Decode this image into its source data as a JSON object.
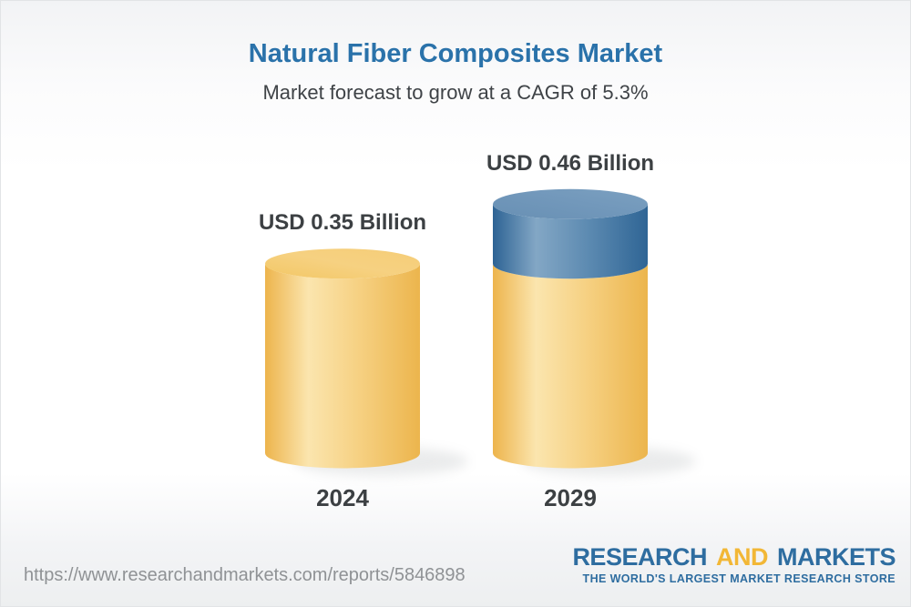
{
  "header": {
    "title": "Natural Fiber Composites Market",
    "subtitle": "Market forecast to grow at a CAGR of 5.3%"
  },
  "chart_data": {
    "type": "bar",
    "variant": "3d-cylinder-stacked",
    "title": "Natural Fiber Composites Market",
    "subtitle": "Market forecast to grow at a CAGR of 5.3%",
    "unit": "USD Billion",
    "categories": [
      "2024",
      "2029"
    ],
    "series": [
      {
        "name": "base-market-size",
        "color_key": "yellow",
        "values": [
          0.35,
          0.35
        ]
      },
      {
        "name": "forecast-growth",
        "color_key": "blue",
        "values": [
          0,
          0.11
        ]
      }
    ],
    "totals": [
      0.35,
      0.46
    ],
    "bar_labels": [
      "USD 0.35 Billion",
      "USD 0.46 Billion"
    ],
    "ylim": [
      0,
      0.5
    ],
    "colors": {
      "yellow": "#F2C462",
      "yellow_highlight": "#FBE5AE",
      "yellow_edge": "#ECB54D",
      "yellow_top": "#F5CE79",
      "blue": "#3D6F9E",
      "blue_highlight": "#83A7C5",
      "blue_edge": "#2D6394",
      "blue_top": "#6E94B8"
    }
  },
  "footer": {
    "url": "https://www.researchandmarkets.com/reports/5846898",
    "logo": {
      "part1": "RESEARCH",
      "part2": "AND",
      "part3": "MARKETS",
      "tagline": "THE WORLD'S LARGEST MARKET RESEARCH STORE"
    }
  }
}
